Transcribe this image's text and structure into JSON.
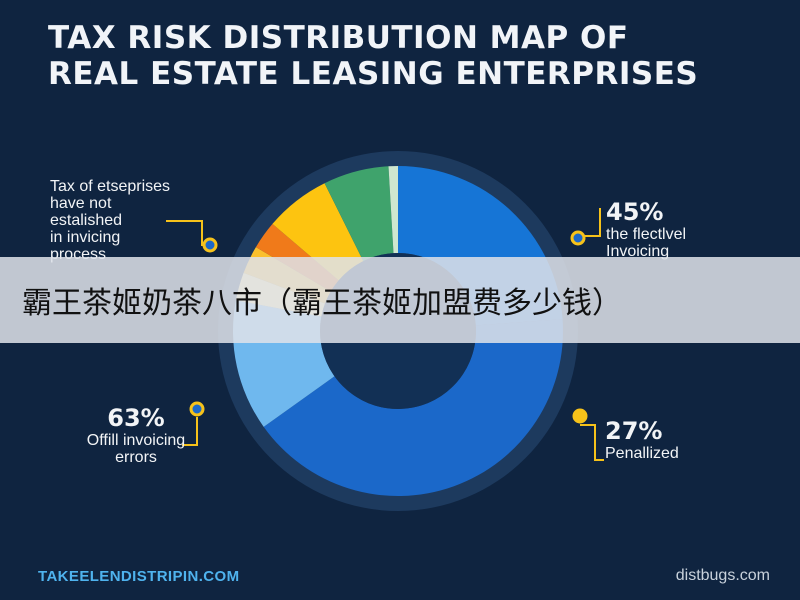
{
  "title_lines": [
    "TAX RISK DISTRIBUTION MAP OF",
    "REAL ESTATE LEASING ENTERPRISES"
  ],
  "banner_text": "霸王茶姬奶茶八市（霸王茶姬加盟费多少钱）",
  "footer": {
    "left": "TAKEELENDISTRIPIN.COM",
    "right": "distbugs.com"
  },
  "callouts": {
    "top_left": {
      "pct": "",
      "desc": [
        "Tax of etseprises",
        "have not",
        "estalished",
        "in invicing",
        "process"
      ]
    },
    "top_right": {
      "pct": "45%",
      "desc": [
        "the flectlvel",
        "Invoicing"
      ]
    },
    "bottom_left": {
      "pct": "63%",
      "desc": [
        "Offill invoicing",
        "errors"
      ]
    },
    "bottom_right": {
      "pct": "27%",
      "desc": [
        "Penallized"
      ]
    }
  },
  "colors": {
    "background": "#0f2440",
    "ring_outer": "#1d3a5e",
    "hole": "#123055"
  },
  "chart_data": {
    "type": "pie",
    "donut": true,
    "title": "TAX RISK DISTRIBUTION MAP OF REAL ESTATE LEASING ENTERPRISES",
    "start_angle_deg": 0,
    "slices": [
      {
        "label": "",
        "value": 26,
        "color": "#1675d6"
      },
      {
        "label": "",
        "value": 45,
        "color": "#1b68c9"
      },
      {
        "label": "",
        "value": 14,
        "color": "#6fb8ee"
      },
      {
        "label": "",
        "value": 3,
        "color": "#fbe89a"
      },
      {
        "label": "",
        "value": 3,
        "color": "#fbc02d"
      },
      {
        "label": "",
        "value": 3,
        "color": "#f07a1a"
      },
      {
        "label": "",
        "value": 7,
        "color": "#fdc410"
      },
      {
        "label": "",
        "value": 7,
        "color": "#3fa36c"
      },
      {
        "label": "",
        "value": 1,
        "color": "#cfe7cf"
      }
    ]
  }
}
